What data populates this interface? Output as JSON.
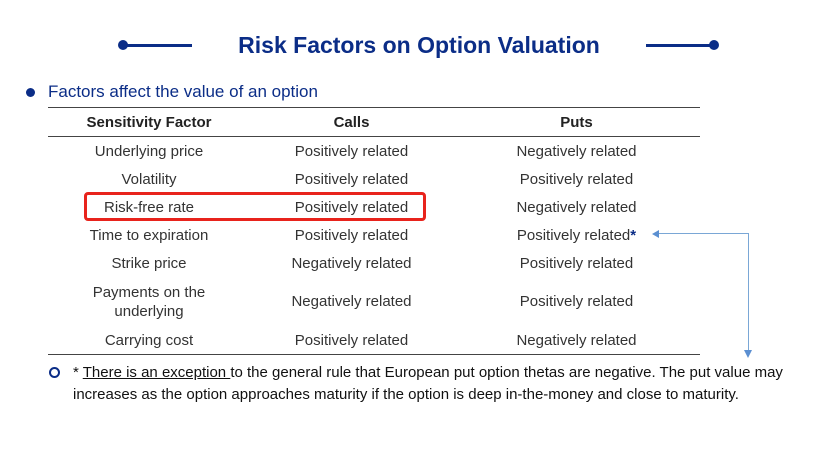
{
  "title": "Risk Factors on Option Valuation",
  "subtitle": "Factors affect the value of an option",
  "table": {
    "headers": [
      "Sensitivity Factor",
      "Calls",
      "Puts"
    ],
    "rows": [
      [
        "Underlying price",
        "Positively related",
        "Negatively related"
      ],
      [
        "Volatility",
        "Positively related",
        "Positively related"
      ],
      [
        "Risk-free rate",
        "Positively related",
        "Negatively related"
      ],
      [
        "Time to expiration",
        "Positively related",
        "Positively related"
      ],
      [
        "Strike price",
        "Negatively related",
        "Positively related"
      ],
      [
        "Payments on the underlying",
        "Negatively related",
        "Positively related"
      ],
      [
        "Carrying cost",
        "Positively related",
        "Negatively related"
      ]
    ],
    "asterisk": "*"
  },
  "note": {
    "prefix": "* ",
    "underlined": "There is an exception ",
    "rest": "to the general rule that European put option thetas are negative. The put value may increases as the option approaches maturity if the option is deep in-the-money and close to maturity."
  },
  "colors": {
    "title": "#0b2d87",
    "highlight": "#e8231c",
    "connector": "#7aa7d6"
  }
}
